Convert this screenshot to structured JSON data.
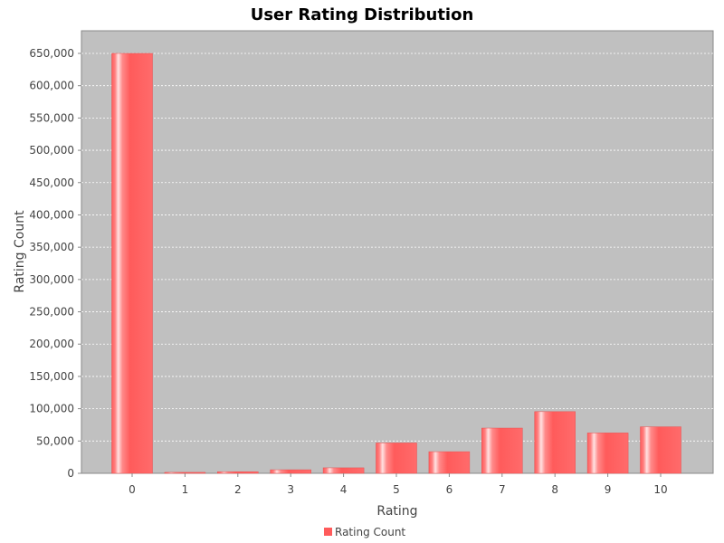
{
  "chart_data": {
    "type": "bar",
    "title": "User Rating Distribution",
    "xlabel": "Rating",
    "ylabel": "Rating Count",
    "categories": [
      "0",
      "1",
      "2",
      "3",
      "4",
      "5",
      "6",
      "7",
      "8",
      "9",
      "10"
    ],
    "series": [
      {
        "name": "Rating Count",
        "values": [
          650000,
          1500,
          2500,
          5500,
          8500,
          47000,
          33500,
          70000,
          95500,
          62500,
          72000
        ]
      }
    ],
    "ylim": [
      0,
      680000
    ],
    "y_ticks": [
      0,
      50000,
      100000,
      150000,
      200000,
      250000,
      300000,
      350000,
      400000,
      450000,
      500000,
      550000,
      600000,
      650000
    ],
    "y_tick_labels": [
      "0",
      "50,000",
      "100,000",
      "150,000",
      "200,000",
      "250,000",
      "300,000",
      "350,000",
      "400,000",
      "450,000",
      "500,000",
      "550,000",
      "600,000",
      "650,000"
    ],
    "grid": true,
    "legend": "bottom",
    "colors": {
      "bar": "#ff5b5b",
      "bar_highlight": "#ffd0d0",
      "plot_background": "#c0c0c0",
      "grid": "#ffffff"
    }
  }
}
